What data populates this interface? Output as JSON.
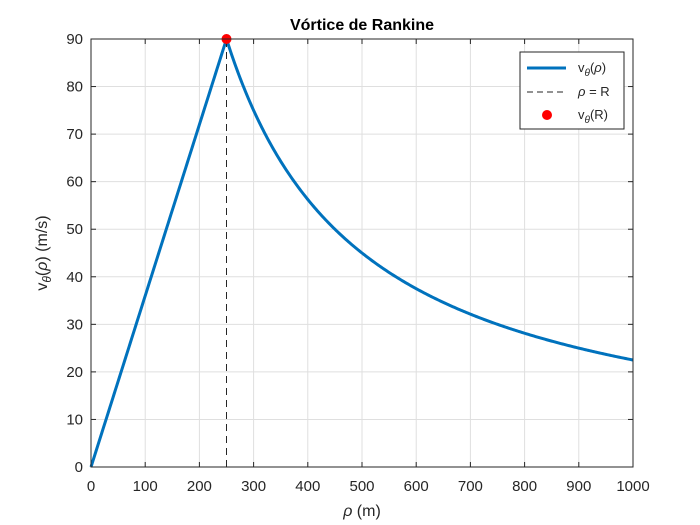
{
  "chart_data": {
    "type": "line",
    "title": "Vórtice de Rankine",
    "xlabel": {
      "italic": "ρ",
      "rest": " (m)"
    },
    "ylabel": {
      "prefix": "v",
      "sub": "θ",
      "paren_open": "(",
      "italic": "ρ",
      "rest": ") (m/s)"
    },
    "xlim": [
      0,
      1000
    ],
    "ylim": [
      0,
      90
    ],
    "xticks": [
      0,
      100,
      200,
      300,
      400,
      500,
      600,
      700,
      800,
      900,
      1000
    ],
    "yticks": [
      0,
      10,
      20,
      30,
      40,
      50,
      60,
      70,
      80,
      90
    ],
    "grid": true,
    "legend_placement": "top-right",
    "core_radius": 250,
    "max_velocity": 90,
    "series": [
      {
        "name": {
          "prefix": "v",
          "sub": "θ",
          "rest_open": "(",
          "italic": "ρ",
          "rest_close": ")"
        },
        "kind": "line",
        "color": "#0072BD",
        "x": [
          0,
          250,
          275,
          300,
          325,
          350,
          375,
          400,
          450,
          500,
          550,
          600,
          650,
          700,
          750,
          800,
          850,
          900,
          950,
          1000
        ],
        "y": [
          0,
          90,
          81.82,
          75,
          69.23,
          64.29,
          60,
          56.25,
          50,
          45,
          40.91,
          37.5,
          34.62,
          32.14,
          30,
          28.13,
          26.47,
          25,
          23.68,
          22.5
        ]
      },
      {
        "name": {
          "italic": "ρ",
          "rest": " = R"
        },
        "kind": "dashed-vertical",
        "color": "#262626",
        "x": 250,
        "y_range": [
          0,
          90
        ]
      },
      {
        "name": {
          "prefix": "v",
          "sub": "θ",
          "rest": "(R)"
        },
        "kind": "point",
        "color": "#FF0000",
        "x": 250,
        "y": 90
      }
    ]
  }
}
